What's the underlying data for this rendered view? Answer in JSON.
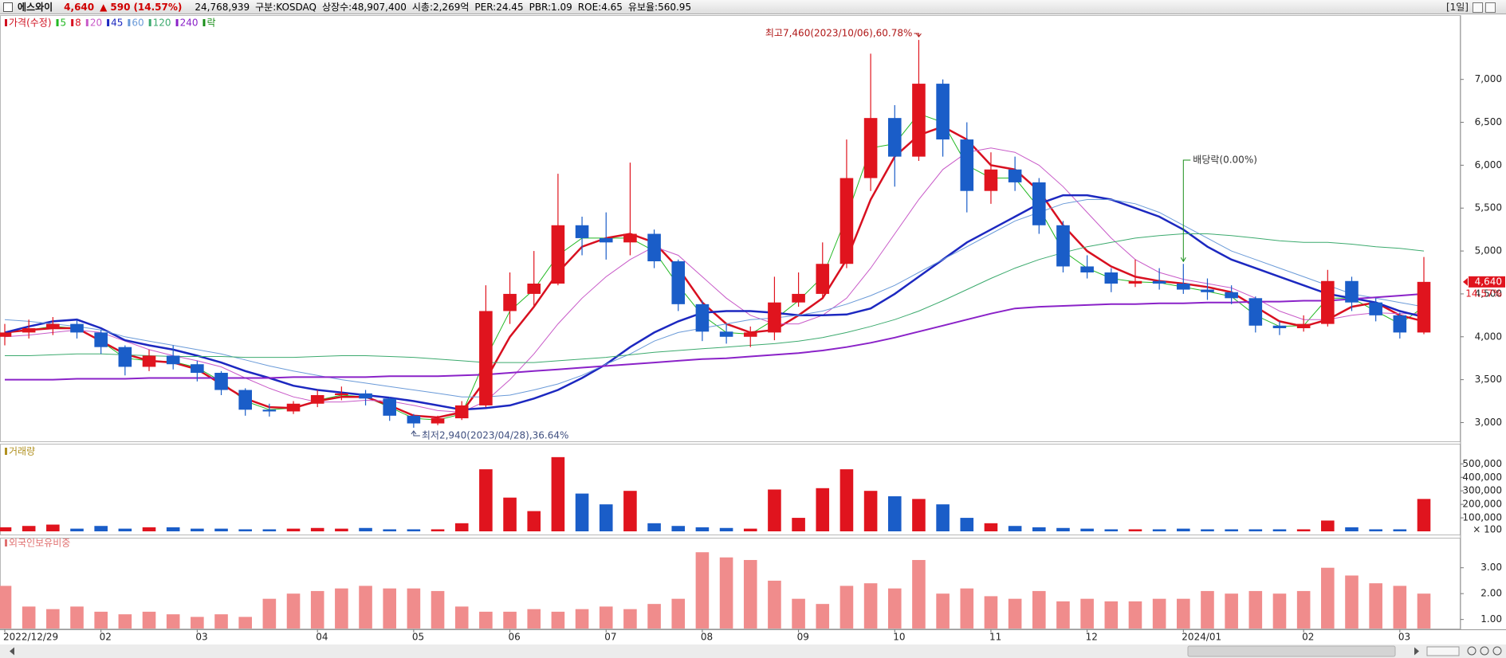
{
  "header": {
    "name": "에스와이",
    "price": "4,640",
    "arrow": "▲",
    "change": "590",
    "change_pct": "(14.57%)",
    "volume": "24,768,939",
    "market": "구분:KOSDAQ",
    "shares": "상장수:48,907,400",
    "cap": "시총:2,269억",
    "per": "PER:24.45",
    "pbr": "PBR:1.09",
    "roe": "ROE:4.65",
    "reserve": "유보율:560.95",
    "period": "[1일]"
  },
  "chart_data": [
    {
      "type": "candlestick",
      "price_legend": "가격(수정)",
      "price_legend_color": "#d01020",
      "ex_dividend_legend": "락",
      "ex_dividend_color": "#1a8f1a",
      "categories": [
        "2022/12/29",
        null,
        null,
        null,
        "02",
        null,
        null,
        null,
        "03",
        null,
        null,
        null,
        null,
        "04",
        null,
        null,
        null,
        "05",
        null,
        null,
        null,
        "06",
        null,
        null,
        null,
        "07",
        null,
        null,
        null,
        "08",
        null,
        null,
        null,
        "09",
        null,
        null,
        null,
        "10",
        null,
        null,
        null,
        "11",
        null,
        null,
        null,
        "12",
        null,
        null,
        null,
        "2024/01",
        null,
        null,
        null,
        null,
        "02",
        null,
        null,
        null,
        "03",
        null
      ],
      "open": [
        4000,
        4050,
        4100,
        4150,
        4050,
        3880,
        3650,
        3780,
        3680,
        3580,
        3380,
        3150,
        3130,
        3220,
        3320,
        3340,
        3280,
        3080,
        2990,
        3050,
        3200,
        4300,
        4500,
        4620,
        5300,
        5150,
        5100,
        5200,
        4880,
        4380,
        4060,
        4000,
        4050,
        4400,
        4500,
        4850,
        5850,
        6550,
        6100,
        6950,
        6300,
        5700,
        5950,
        5800,
        5300,
        4820,
        4750,
        4620,
        4650,
        4620,
        4550,
        4520,
        4450,
        4130,
        4100,
        4150,
        4650,
        4400,
        4250,
        4050
      ],
      "high": [
        4150,
        4200,
        4230,
        4200,
        4080,
        3900,
        3850,
        3900,
        3720,
        3600,
        3400,
        3220,
        3250,
        3380,
        3420,
        3380,
        3300,
        3100,
        3080,
        3250,
        4600,
        4750,
        5000,
        5900,
        5400,
        5450,
        6030,
        5250,
        4900,
        4420,
        4150,
        4120,
        4700,
        4750,
        5100,
        6300,
        7300,
        6700,
        7460,
        7000,
        6500,
        6150,
        6100,
        5850,
        5350,
        4950,
        4800,
        4900,
        4800,
        4850,
        4680,
        4600,
        4470,
        4180,
        4250,
        4780,
        4700,
        4450,
        4280,
        4930
      ],
      "low": [
        3900,
        3980,
        4020,
        3980,
        3800,
        3550,
        3600,
        3620,
        3480,
        3320,
        3080,
        3070,
        3100,
        3180,
        3260,
        3200,
        3020,
        2940,
        2970,
        3030,
        3180,
        4150,
        4350,
        4600,
        4950,
        4900,
        4950,
        4800,
        4300,
        3950,
        3920,
        3880,
        3960,
        4350,
        4450,
        4800,
        5700,
        5750,
        6050,
        6100,
        5450,
        5550,
        5700,
        5200,
        4750,
        4680,
        4520,
        4580,
        4550,
        4500,
        4430,
        4380,
        4050,
        4020,
        4060,
        4120,
        4300,
        4180,
        3980,
        4030
      ],
      "close": [
        4050,
        4100,
        4150,
        4050,
        3880,
        3650,
        3780,
        3680,
        3580,
        3380,
        3150,
        3130,
        3220,
        3320,
        3340,
        3280,
        3080,
        2990,
        3050,
        3200,
        4300,
        4500,
        4620,
        5300,
        5150,
        5100,
        5200,
        4880,
        4380,
        4060,
        4000,
        4050,
        4400,
        4500,
        4850,
        5850,
        6550,
        6100,
        6950,
        6300,
        5700,
        5950,
        5800,
        5300,
        4820,
        4750,
        4620,
        4650,
        4620,
        4550,
        4520,
        4450,
        4130,
        4100,
        4150,
        4650,
        4400,
        4250,
        4050,
        4640
      ],
      "up_color": "#e0141e",
      "down_color": "#1a5dc8",
      "last_close_label": "4,640",
      "last_change_label": "14.57%",
      "series": [
        {
          "name": "5",
          "color": "#22b822",
          "line_width": 1,
          "values": [
            4050,
            4080,
            4120,
            4100,
            3950,
            3750,
            3720,
            3710,
            3640,
            3480,
            3250,
            3150,
            3170,
            3260,
            3320,
            3300,
            3180,
            3050,
            3030,
            3100,
            3750,
            4300,
            4550,
            4950,
            5150,
            5150,
            5150,
            5000,
            4600,
            4250,
            4050,
            4030,
            4200,
            4420,
            4700,
            5400,
            6200,
            6250,
            6600,
            6500,
            6000,
            5850,
            5850,
            5500,
            5000,
            4800,
            4680,
            4640,
            4630,
            4580,
            4530,
            4470,
            4250,
            4120,
            4130,
            4450,
            4450,
            4300,
            4150,
            4350
          ]
        },
        {
          "name": "8",
          "color": "#d81020",
          "line_width": 2.5,
          "values": [
            4050,
            4080,
            4100,
            4100,
            3950,
            3800,
            3720,
            3700,
            3620,
            3450,
            3280,
            3180,
            3170,
            3250,
            3300,
            3300,
            3200,
            3080,
            3060,
            3120,
            3500,
            4000,
            4350,
            4750,
            5050,
            5150,
            5200,
            5100,
            4800,
            4400,
            4150,
            4050,
            4080,
            4250,
            4450,
            4900,
            5600,
            6100,
            6350,
            6450,
            6300,
            6000,
            5950,
            5700,
            5300,
            5000,
            4820,
            4700,
            4650,
            4620,
            4580,
            4520,
            4350,
            4180,
            4120,
            4200,
            4350,
            4400,
            4250,
            4180
          ]
        },
        {
          "name": "20",
          "color": "#c85ac8",
          "line_width": 1,
          "values": [
            4000,
            4020,
            4050,
            4080,
            4050,
            3950,
            3850,
            3780,
            3720,
            3650,
            3520,
            3400,
            3300,
            3240,
            3240,
            3260,
            3250,
            3200,
            3140,
            3120,
            3250,
            3500,
            3800,
            4150,
            4450,
            4700,
            4900,
            5050,
            4950,
            4700,
            4450,
            4250,
            4150,
            4150,
            4250,
            4450,
            4800,
            5200,
            5600,
            5950,
            6150,
            6200,
            6150,
            6000,
            5750,
            5450,
            5150,
            4900,
            4750,
            4670,
            4620,
            4570,
            4450,
            4300,
            4200,
            4200,
            4250,
            4280,
            4270,
            4270
          ]
        },
        {
          "name": "45",
          "color": "#1c28c0",
          "line_width": 2.5,
          "values": [
            4050,
            4120,
            4180,
            4200,
            4100,
            3960,
            3900,
            3850,
            3780,
            3700,
            3600,
            3520,
            3430,
            3380,
            3350,
            3320,
            3290,
            3250,
            3200,
            3150,
            3170,
            3200,
            3280,
            3380,
            3520,
            3680,
            3880,
            4050,
            4180,
            4280,
            4300,
            4300,
            4280,
            4250,
            4250,
            4260,
            4330,
            4500,
            4700,
            4900,
            5100,
            5250,
            5400,
            5550,
            5650,
            5650,
            5600,
            5500,
            5400,
            5250,
            5050,
            4900,
            4800,
            4700,
            4600,
            4500,
            4450,
            4400,
            4300,
            4230
          ]
        },
        {
          "name": "60",
          "color": "#6a9ad8",
          "line_width": 1,
          "values": [
            4200,
            4180,
            4150,
            4120,
            4080,
            4000,
            3950,
            3900,
            3850,
            3800,
            3730,
            3660,
            3600,
            3550,
            3500,
            3460,
            3420,
            3380,
            3340,
            3300,
            3300,
            3320,
            3380,
            3450,
            3550,
            3680,
            3800,
            3950,
            4050,
            4100,
            4150,
            4200,
            4220,
            4250,
            4300,
            4380,
            4480,
            4600,
            4750,
            4900,
            5050,
            5200,
            5350,
            5450,
            5550,
            5600,
            5600,
            5550,
            5450,
            5300,
            5150,
            5000,
            4900,
            4800,
            4700,
            4600,
            4500,
            4450,
            4400,
            4350
          ]
        },
        {
          "name": "120",
          "color": "#3caa6e",
          "line_width": 1,
          "values": [
            3780,
            3780,
            3790,
            3800,
            3800,
            3790,
            3780,
            3770,
            3770,
            3770,
            3760,
            3760,
            3760,
            3770,
            3780,
            3780,
            3770,
            3760,
            3740,
            3720,
            3700,
            3700,
            3700,
            3720,
            3740,
            3760,
            3790,
            3820,
            3840,
            3860,
            3880,
            3900,
            3920,
            3950,
            3990,
            4050,
            4120,
            4200,
            4300,
            4420,
            4550,
            4680,
            4800,
            4900,
            4980,
            5050,
            5100,
            5150,
            5180,
            5200,
            5200,
            5180,
            5150,
            5120,
            5100,
            5100,
            5080,
            5050,
            5030,
            5000
          ]
        },
        {
          "name": "240",
          "color": "#8a22c8",
          "line_width": 2,
          "values": [
            3500,
            3500,
            3500,
            3510,
            3510,
            3510,
            3520,
            3520,
            3520,
            3520,
            3520,
            3520,
            3530,
            3530,
            3530,
            3530,
            3540,
            3540,
            3540,
            3550,
            3560,
            3580,
            3600,
            3620,
            3640,
            3660,
            3680,
            3700,
            3720,
            3740,
            3750,
            3770,
            3790,
            3810,
            3840,
            3880,
            3930,
            3990,
            4060,
            4130,
            4200,
            4270,
            4330,
            4350,
            4360,
            4370,
            4380,
            4380,
            4390,
            4390,
            4400,
            4400,
            4410,
            4410,
            4420,
            4420,
            4440,
            4460,
            4480,
            4500
          ]
        }
      ],
      "ylim": [
        2800,
        7740
      ],
      "yticks": [
        {
          "value": 3000,
          "label": "3,000"
        },
        {
          "value": 3500,
          "label": "3,500"
        },
        {
          "value": 4000,
          "label": "4,000"
        },
        {
          "value": 4500,
          "label": "4,500"
        },
        {
          "value": 5000,
          "label": "5,000"
        },
        {
          "value": 5500,
          "label": "5,500"
        },
        {
          "value": 6000,
          "label": "6,000"
        },
        {
          "value": 6500,
          "label": "6,500"
        },
        {
          "value": 7000,
          "label": "7,000"
        }
      ],
      "grid": false,
      "annotations": [
        {
          "text": "최고7,460(2023/10/06),60.78%",
          "index": 38,
          "kind": "high",
          "color": "#b01818"
        },
        {
          "text": "최저2,940(2023/04/28),36.64%",
          "index": 17,
          "kind": "low",
          "color": "#405080"
        },
        {
          "text": "배당락(0.00%)",
          "index": 49,
          "kind": "event",
          "color": "#1a8f1a"
        }
      ]
    },
    {
      "type": "bar",
      "title": "거래량",
      "title_color": "#b09020",
      "color_by_price": true,
      "values": [
        30000,
        40000,
        50000,
        20000,
        40000,
        20000,
        30000,
        30000,
        20000,
        20000,
        15000,
        15000,
        20000,
        25000,
        20000,
        25000,
        15000,
        15000,
        15000,
        60000,
        460000,
        250000,
        150000,
        550000,
        280000,
        200000,
        300000,
        60000,
        40000,
        30000,
        25000,
        20000,
        310000,
        100000,
        320000,
        460000,
        300000,
        260000,
        240000,
        200000,
        100000,
        60000,
        40000,
        30000,
        25000,
        20000,
        15000,
        15000,
        15000,
        20000,
        15000,
        15000,
        15000,
        15000,
        15000,
        80000,
        30000,
        15000,
        15000,
        240000
      ],
      "unit_label": "× 100",
      "ylim": [
        0,
        620000
      ],
      "yticks": [
        {
          "value": 100000,
          "label": "100,000"
        },
        {
          "value": 200000,
          "label": "200,000"
        },
        {
          "value": 300000,
          "label": "300,000"
        },
        {
          "value": 400000,
          "label": "400,000"
        },
        {
          "value": 500000,
          "label": "500,000"
        }
      ],
      "grid": false
    },
    {
      "type": "bar",
      "title": "외국인보유비중",
      "title_color": "#e07070",
      "color": "#f08c8c",
      "values": [
        2.3,
        1.5,
        1.4,
        1.5,
        1.3,
        1.2,
        1.3,
        1.2,
        1.1,
        1.2,
        1.1,
        1.8,
        2.0,
        2.1,
        2.2,
        2.3,
        2.2,
        2.2,
        2.1,
        1.5,
        1.3,
        1.3,
        1.4,
        1.3,
        1.4,
        1.5,
        1.4,
        1.6,
        1.8,
        3.6,
        3.4,
        3.3,
        2.5,
        1.8,
        1.6,
        2.3,
        2.4,
        2.2,
        3.3,
        2.0,
        2.2,
        1.9,
        1.8,
        2.1,
        1.7,
        1.8,
        1.7,
        1.7,
        1.8,
        1.8,
        2.1,
        2.0,
        2.1,
        2.0,
        2.1,
        3.0,
        2.7,
        2.4,
        2.3,
        2.0
      ],
      "ylim": [
        0.65,
        4.1
      ],
      "yticks": [
        {
          "value": 1,
          "label": "1.00"
        },
        {
          "value": 2,
          "label": "2.00"
        },
        {
          "value": 3,
          "label": "3.00"
        }
      ],
      "grid": false
    }
  ]
}
